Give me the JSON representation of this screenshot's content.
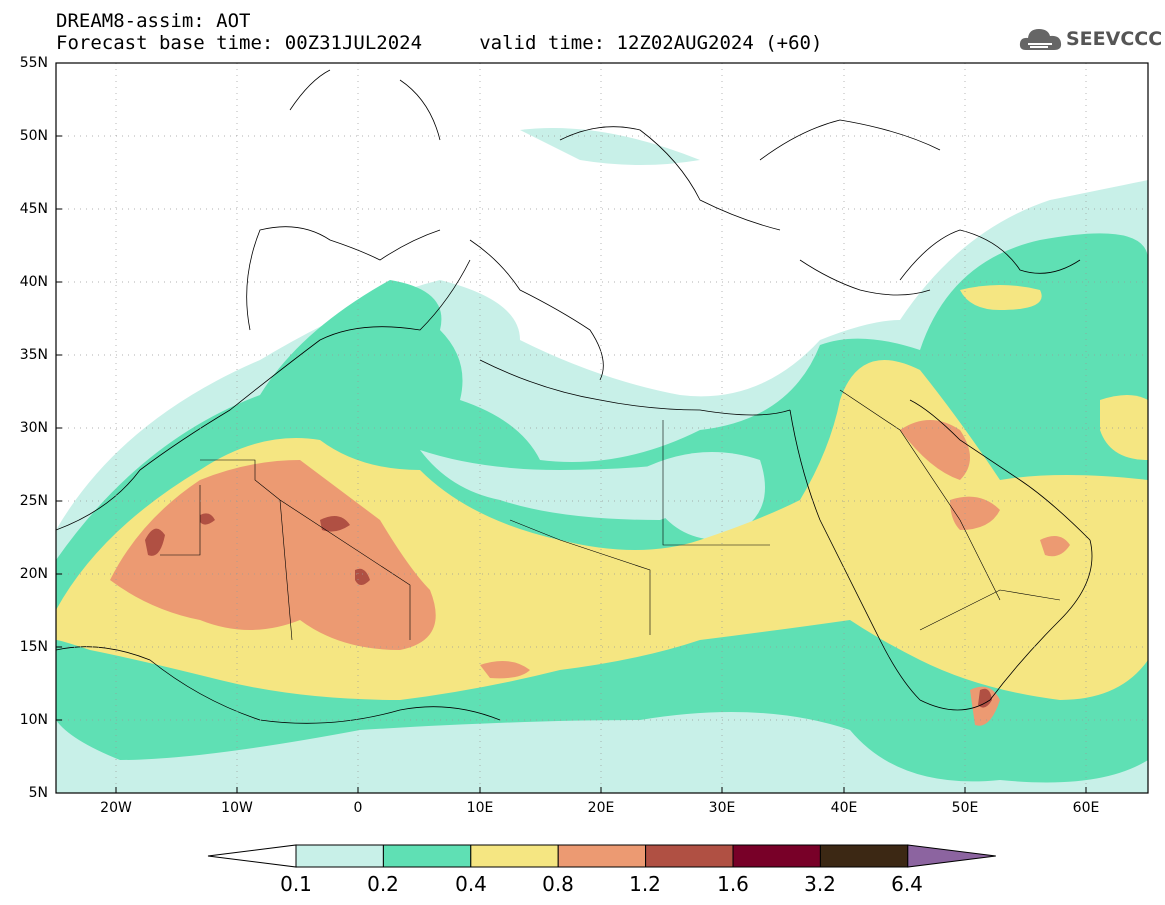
{
  "header": {
    "title_line1": "DREAM8-assim: AOT",
    "title_line2": "Forecast base time: 00Z31JUL2024     valid time: 12Z02AUG2024 (+60)"
  },
  "logo": {
    "text": "SEEVCCC",
    "icon": "cloud-icon"
  },
  "map": {
    "lat_labels": [
      "55N",
      "50N",
      "45N",
      "40N",
      "35N",
      "30N",
      "25N",
      "20N",
      "15N",
      "10N",
      "5N"
    ],
    "lon_labels": [
      "20W",
      "10W",
      "0",
      "10E",
      "20E",
      "30E",
      "40E",
      "50E",
      "60E"
    ],
    "lon_range": [
      -25,
      65
    ],
    "lat_range": [
      5,
      55
    ]
  },
  "legend": {
    "colors": [
      "#ffffff",
      "#c8f0e8",
      "#5fe0b4",
      "#f5e682",
      "#ec9a72",
      "#b05043",
      "#780028",
      "#3c2814",
      "#8c64a0"
    ],
    "labels": [
      "0.1",
      "0.2",
      "0.4",
      "0.8",
      "1.2",
      "1.6",
      "3.2",
      "6.4"
    ]
  }
}
